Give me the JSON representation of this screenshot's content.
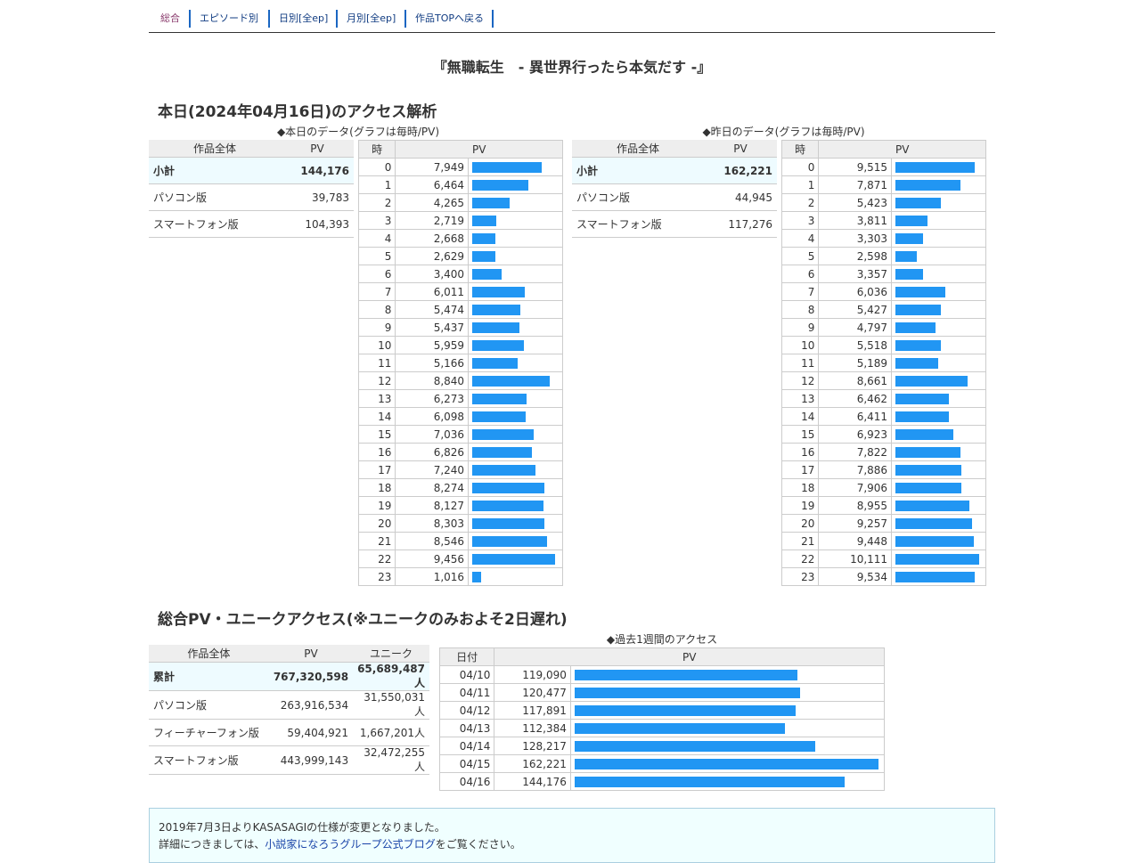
{
  "nav": {
    "items": [
      {
        "label": "総合",
        "active": true
      },
      {
        "label": "エピソード別",
        "active": false
      },
      {
        "label": "日別[全ep]",
        "active": false
      },
      {
        "label": "月別[全ep]",
        "active": false
      },
      {
        "label": "作品TOPへ戻る",
        "active": false
      }
    ]
  },
  "work_title": "『無職転生　- 異世界行ったら本気だす -』",
  "today_section": {
    "heading": "本日(2024年04月16日)のアクセス解析",
    "today": {
      "caption": "◆本日のデータ(グラフは毎時/PV)",
      "summary_headers": [
        "作品全体",
        "PV"
      ],
      "summary": [
        {
          "label": "小計",
          "pv": "144,176"
        },
        {
          "label": "パソコン版",
          "pv": "39,783"
        },
        {
          "label": "スマートフォン版",
          "pv": "104,393"
        }
      ],
      "hourly_headers": [
        "時",
        "PV"
      ],
      "hourly": [
        {
          "h": "0",
          "pv": "7,949",
          "v": 7949
        },
        {
          "h": "1",
          "pv": "6,464",
          "v": 6464
        },
        {
          "h": "2",
          "pv": "4,265",
          "v": 4265
        },
        {
          "h": "3",
          "pv": "2,719",
          "v": 2719
        },
        {
          "h": "4",
          "pv": "2,668",
          "v": 2668
        },
        {
          "h": "5",
          "pv": "2,629",
          "v": 2629
        },
        {
          "h": "6",
          "pv": "3,400",
          "v": 3400
        },
        {
          "h": "7",
          "pv": "6,011",
          "v": 6011
        },
        {
          "h": "8",
          "pv": "5,474",
          "v": 5474
        },
        {
          "h": "9",
          "pv": "5,437",
          "v": 5437
        },
        {
          "h": "10",
          "pv": "5,959",
          "v": 5959
        },
        {
          "h": "11",
          "pv": "5,166",
          "v": 5166
        },
        {
          "h": "12",
          "pv": "8,840",
          "v": 8840
        },
        {
          "h": "13",
          "pv": "6,273",
          "v": 6273
        },
        {
          "h": "14",
          "pv": "6,098",
          "v": 6098
        },
        {
          "h": "15",
          "pv": "7,036",
          "v": 7036
        },
        {
          "h": "16",
          "pv": "6,826",
          "v": 6826
        },
        {
          "h": "17",
          "pv": "7,240",
          "v": 7240
        },
        {
          "h": "18",
          "pv": "8,274",
          "v": 8274
        },
        {
          "h": "19",
          "pv": "8,127",
          "v": 8127
        },
        {
          "h": "20",
          "pv": "8,303",
          "v": 8303
        },
        {
          "h": "21",
          "pv": "8,546",
          "v": 8546
        },
        {
          "h": "22",
          "pv": "9,456",
          "v": 9456
        },
        {
          "h": "23",
          "pv": "1,016",
          "v": 1016
        }
      ]
    },
    "yesterday": {
      "caption": "◆昨日のデータ(グラフは毎時/PV)",
      "summary_headers": [
        "作品全体",
        "PV"
      ],
      "summary": [
        {
          "label": "小計",
          "pv": "162,221"
        },
        {
          "label": "パソコン版",
          "pv": "44,945"
        },
        {
          "label": "スマートフォン版",
          "pv": "117,276"
        }
      ],
      "hourly_headers": [
        "時",
        "PV"
      ],
      "hourly": [
        {
          "h": "0",
          "pv": "9,515",
          "v": 9515
        },
        {
          "h": "1",
          "pv": "7,871",
          "v": 7871
        },
        {
          "h": "2",
          "pv": "5,423",
          "v": 5423
        },
        {
          "h": "3",
          "pv": "3,811",
          "v": 3811
        },
        {
          "h": "4",
          "pv": "3,303",
          "v": 3303
        },
        {
          "h": "5",
          "pv": "2,598",
          "v": 2598
        },
        {
          "h": "6",
          "pv": "3,357",
          "v": 3357
        },
        {
          "h": "7",
          "pv": "6,036",
          "v": 6036
        },
        {
          "h": "8",
          "pv": "5,427",
          "v": 5427
        },
        {
          "h": "9",
          "pv": "4,797",
          "v": 4797
        },
        {
          "h": "10",
          "pv": "5,518",
          "v": 5518
        },
        {
          "h": "11",
          "pv": "5,189",
          "v": 5189
        },
        {
          "h": "12",
          "pv": "8,661",
          "v": 8661
        },
        {
          "h": "13",
          "pv": "6,462",
          "v": 6462
        },
        {
          "h": "14",
          "pv": "6,411",
          "v": 6411
        },
        {
          "h": "15",
          "pv": "6,923",
          "v": 6923
        },
        {
          "h": "16",
          "pv": "7,822",
          "v": 7822
        },
        {
          "h": "17",
          "pv": "7,886",
          "v": 7886
        },
        {
          "h": "18",
          "pv": "7,906",
          "v": 7906
        },
        {
          "h": "19",
          "pv": "8,955",
          "v": 8955
        },
        {
          "h": "20",
          "pv": "9,257",
          "v": 9257
        },
        {
          "h": "21",
          "pv": "9,448",
          "v": 9448
        },
        {
          "h": "22",
          "pv": "10,111",
          "v": 10111
        },
        {
          "h": "23",
          "pv": "9,534",
          "v": 9534
        }
      ]
    }
  },
  "total_section": {
    "heading": "総合PV・ユニークアクセス(※ユニークのみおよそ2日遅れ)",
    "summary_headers": [
      "作品全体",
      "PV",
      "ユニーク"
    ],
    "summary": [
      {
        "label": "累計",
        "pv": "767,320,598",
        "unique": "65,689,487人"
      },
      {
        "label": "パソコン版",
        "pv": "263,916,534",
        "unique": "31,550,031人"
      },
      {
        "label": "フィーチャーフォン版",
        "pv": "59,404,921",
        "unique": "1,667,201人"
      },
      {
        "label": "スマートフォン版",
        "pv": "443,999,143",
        "unique": "32,472,255人"
      }
    ],
    "week": {
      "caption": "◆過去1週間のアクセス",
      "headers": [
        "日付",
        "PV"
      ],
      "rows": [
        {
          "date": "04/10",
          "pv": "119,090",
          "v": 119090
        },
        {
          "date": "04/11",
          "pv": "120,477",
          "v": 120477
        },
        {
          "date": "04/12",
          "pv": "117,891",
          "v": 117891
        },
        {
          "date": "04/13",
          "pv": "112,384",
          "v": 112384
        },
        {
          "date": "04/14",
          "pv": "128,217",
          "v": 128217
        },
        {
          "date": "04/15",
          "pv": "162,221",
          "v": 162221
        },
        {
          "date": "04/16",
          "pv": "144,176",
          "v": 144176
        }
      ]
    }
  },
  "footer": {
    "line1": "2019年7月3日よりKASASAGIの仕様が変更となりました。",
    "line2_prefix": "詳細につきましては、",
    "line2_link": "小説家になろうグループ公式ブログ",
    "line2_suffix": "をご覧ください。"
  },
  "colors": {
    "bar": "#2196f3",
    "nav_link": "#113c82",
    "nav_active": "#8a3b6d",
    "highlight_row": "#eefbff"
  }
}
